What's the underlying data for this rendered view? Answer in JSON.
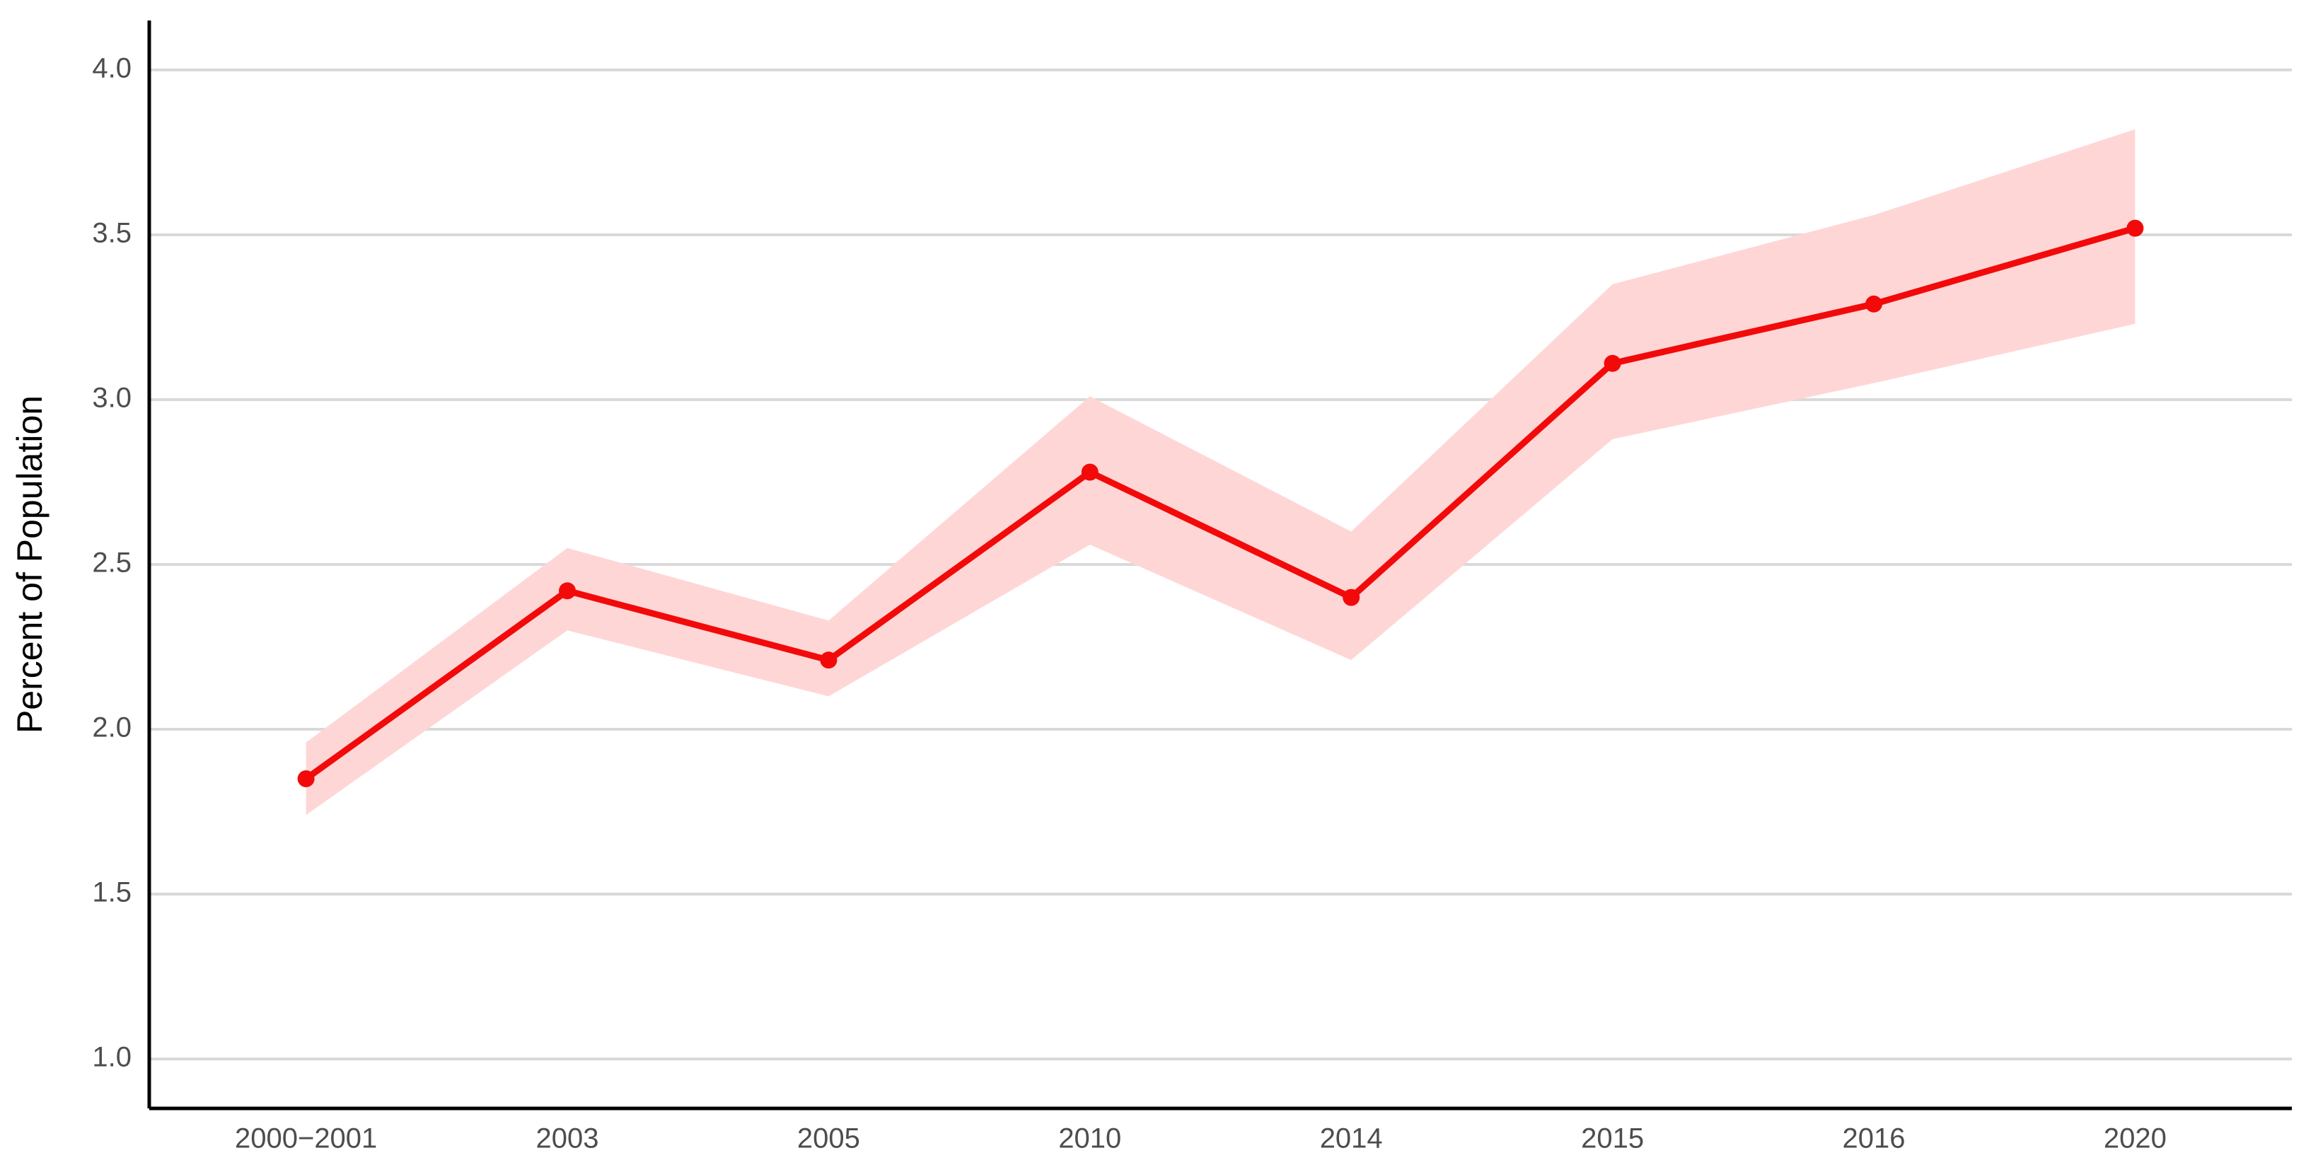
{
  "chart_data": {
    "type": "line",
    "y_label": "Percent of Population",
    "categories": [
      "2000−2001",
      "2003",
      "2005",
      "2010",
      "2014",
      "2015",
      "2016",
      "2020"
    ],
    "values": [
      1.85,
      2.42,
      2.21,
      2.78,
      2.4,
      3.11,
      3.29,
      3.52
    ],
    "lower": [
      1.74,
      2.3,
      2.1,
      2.56,
      2.21,
      2.88,
      3.05,
      3.23
    ],
    "upper": [
      1.96,
      2.55,
      2.33,
      3.01,
      2.6,
      3.35,
      3.56,
      3.82
    ],
    "color": "#f20a0a",
    "band_color": "#ffd6d6",
    "ylim": [
      0.85,
      4.15
    ],
    "yticks": [
      {
        "value": 1,
        "label": "1.0"
      },
      1.5,
      {
        "value": 2,
        "label": "2.0"
      },
      2.5,
      {
        "value": 3,
        "label": "3.0"
      },
      3.5,
      {
        "value": 4,
        "label": "4.0"
      }
    ],
    "grid": true
  }
}
